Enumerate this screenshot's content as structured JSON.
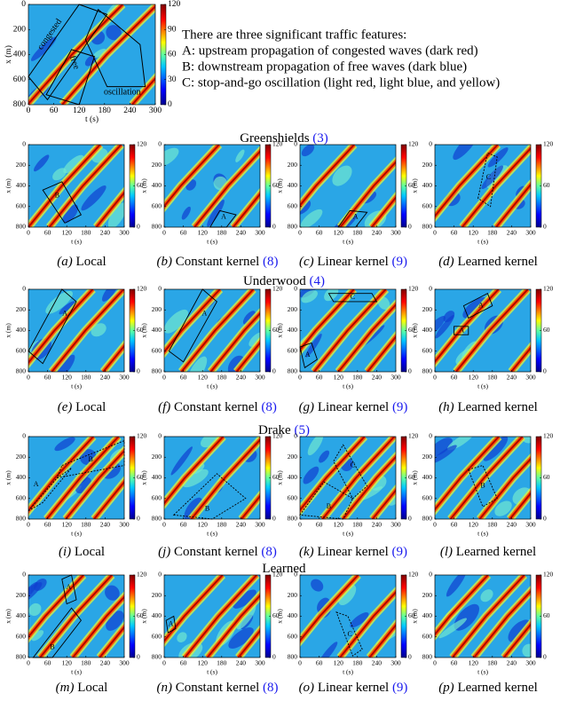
{
  "top_panel": {
    "xlabel": "t (s)",
    "ylabel": "x (m)",
    "xticks": [
      0,
      60,
      120,
      180,
      240,
      300
    ],
    "yticks": [
      0,
      200,
      400,
      600,
      800
    ],
    "cbar_ticks": [
      0,
      30,
      60,
      90,
      120
    ],
    "annotations": [
      "congested",
      "free",
      "oscillation"
    ]
  },
  "features": {
    "intro": "There are three significant traffic features:",
    "items": [
      "A: upstream propagation of congested waves (dark red)",
      "B: downstream propagation of free waves (dark blue)",
      "C: stop-and-go oscillation (light red, light blue, and yellow)"
    ]
  },
  "axes": {
    "xlabel": "t (s)",
    "ylabel": "x (m)",
    "xticks": [
      0,
      60,
      120,
      180,
      240,
      300
    ],
    "yticks": [
      0,
      200,
      400,
      600,
      800
    ],
    "cbar_ticks": [
      0,
      60,
      120
    ]
  },
  "rows": [
    {
      "title": "Greenshields",
      "ref": "(3)",
      "panels": [
        {
          "tag": "(a)",
          "label": "Local",
          "annotations": [
            "B"
          ]
        },
        {
          "tag": "(b)",
          "label": "Constant kernel",
          "ref": "(8)",
          "annotations": [
            "A"
          ]
        },
        {
          "tag": "(c)",
          "label": "Linear kernel",
          "ref": "(9)",
          "annotations": [
            "A"
          ]
        },
        {
          "tag": "(d)",
          "label": "Learned kernel",
          "annotations": [
            "C"
          ]
        }
      ]
    },
    {
      "title": "Underwood",
      "ref": "(4)",
      "panels": [
        {
          "tag": "(e)",
          "label": "Local",
          "annotations": [
            "A"
          ]
        },
        {
          "tag": "(f)",
          "label": "Constant kernel",
          "ref": "(8)",
          "annotations": [
            "A"
          ]
        },
        {
          "tag": "(g)",
          "label": "Linear kernel",
          "ref": "(9)",
          "annotations": [
            "C",
            "A"
          ]
        },
        {
          "tag": "(h)",
          "label": "Learned kernel",
          "annotations": [
            "A",
            "A"
          ]
        }
      ]
    },
    {
      "title": "Drake",
      "ref": "(5)",
      "panels": [
        {
          "tag": "(i)",
          "label": "Local",
          "annotations": [
            "B",
            "A"
          ]
        },
        {
          "tag": "(j)",
          "label": "Constant kernel",
          "ref": "(8)",
          "annotations": [
            "B"
          ]
        },
        {
          "tag": "(k)",
          "label": "Linear kernel",
          "ref": "(9)",
          "annotations": [
            "C",
            "B"
          ]
        },
        {
          "tag": "(l)",
          "label": "Learned kernel",
          "annotations": [
            "B"
          ]
        }
      ]
    },
    {
      "title": "Learned",
      "panels": [
        {
          "tag": "(m)",
          "label": "Local",
          "annotations": [
            "A",
            "B"
          ]
        },
        {
          "tag": "(n)",
          "label": "Constant kernel",
          "ref": "(8)",
          "annotations": [
            "A"
          ]
        },
        {
          "tag": "(o)",
          "label": "Linear kernel",
          "ref": "(9)",
          "annotations": [
            "C"
          ]
        },
        {
          "tag": "(p)",
          "label": "Learned kernel",
          "annotations": []
        }
      ]
    }
  ]
}
